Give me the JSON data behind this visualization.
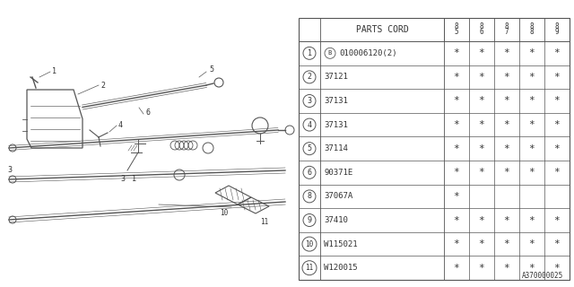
{
  "bg_color": "#ffffff",
  "table_header": "PARTS CORD",
  "year_cols": [
    "85",
    "86",
    "87",
    "88",
    "89"
  ],
  "rows": [
    {
      "num": "1",
      "circled_b": true,
      "part": "010006120(2)",
      "stars": [
        true,
        true,
        true,
        true,
        true
      ]
    },
    {
      "num": "2",
      "circled_b": false,
      "part": "37121",
      "stars": [
        true,
        true,
        true,
        true,
        true
      ]
    },
    {
      "num": "3",
      "circled_b": false,
      "part": "37131",
      "stars": [
        true,
        true,
        true,
        true,
        true
      ]
    },
    {
      "num": "4",
      "circled_b": false,
      "part": "37131",
      "stars": [
        true,
        true,
        true,
        true,
        true
      ]
    },
    {
      "num": "5",
      "circled_b": false,
      "part": "37114",
      "stars": [
        true,
        true,
        true,
        true,
        true
      ]
    },
    {
      "num": "6",
      "circled_b": false,
      "part": "90371E",
      "stars": [
        true,
        true,
        true,
        true,
        true
      ]
    },
    {
      "num": "8",
      "circled_b": false,
      "part": "37067A",
      "stars": [
        true,
        false,
        false,
        false,
        false
      ]
    },
    {
      "num": "9",
      "circled_b": false,
      "part": "37410",
      "stars": [
        true,
        true,
        true,
        true,
        true
      ]
    },
    {
      "num": "10",
      "circled_b": false,
      "part": "W115021",
      "stars": [
        true,
        true,
        true,
        true,
        true
      ]
    },
    {
      "num": "11",
      "circled_b": false,
      "part": "W120015",
      "stars": [
        true,
        true,
        true,
        true,
        true
      ]
    }
  ],
  "diagram_label": "A370000025",
  "line_color": "#555555",
  "text_color": "#333333"
}
